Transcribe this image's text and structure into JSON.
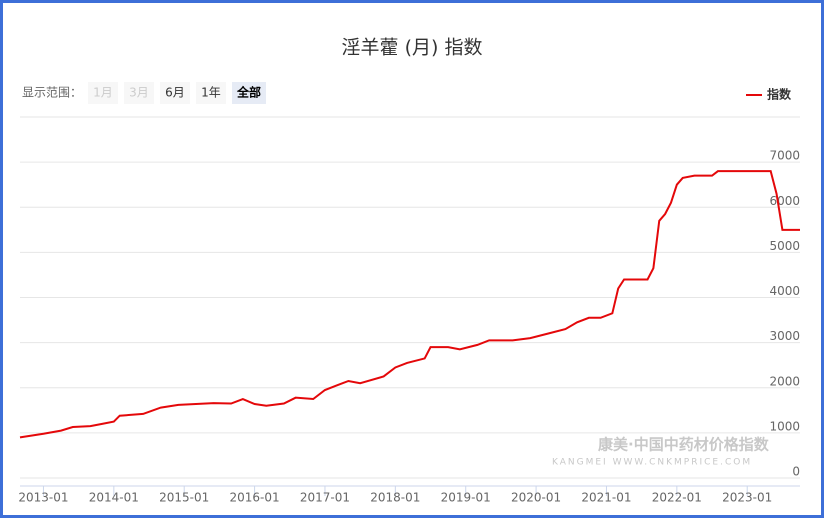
{
  "chart_data": {
    "type": "line",
    "title": "淫羊藿 (月) 指数",
    "range_selector": {
      "label": "显示范围：",
      "buttons": [
        "1月",
        "3月",
        "6月",
        "1年",
        "全部"
      ]
    },
    "watermark": [
      "康美·中国中药材价格指数",
      "KANGMEI WWW.CNKMPRICE.COM"
    ],
    "legend": "top-right",
    "grid": true,
    "x": [
      "2012-09",
      "2013-01",
      "2013-04",
      "2013-06",
      "2013-09",
      "2013-11",
      "2014-01",
      "2014-02",
      "2014-06",
      "2014-09",
      "2014-12",
      "2015-06",
      "2015-09",
      "2015-11",
      "2016-01",
      "2016-03",
      "2016-06",
      "2016-08",
      "2016-11",
      "2017-01",
      "2017-03",
      "2017-05",
      "2017-07",
      "2017-11",
      "2018-01",
      "2018-03",
      "2018-06",
      "2018-07",
      "2018-10",
      "2018-12",
      "2019-03",
      "2019-05",
      "2019-09",
      "2019-12",
      "2020-03",
      "2020-06",
      "2020-08",
      "2020-10",
      "2020-12",
      "2021-02",
      "2021-03",
      "2021-04",
      "2021-08",
      "2021-09",
      "2021-10",
      "2021-11",
      "2021-12",
      "2022-01",
      "2022-02",
      "2022-04",
      "2022-07",
      "2022-08",
      "2023-05",
      "2023-06",
      "2023-07",
      "2023-10"
    ],
    "series": [
      {
        "name": "指数",
        "color": "#e4080a",
        "values": [
          900,
          980,
          1050,
          1130,
          1150,
          1200,
          1250,
          1380,
          1420,
          1560,
          1620,
          1660,
          1650,
          1750,
          1640,
          1600,
          1650,
          1780,
          1750,
          1950,
          2050,
          2150,
          2100,
          2250,
          2450,
          2550,
          2650,
          2900,
          2900,
          2850,
          2950,
          3050,
          3050,
          3100,
          3200,
          3300,
          3450,
          3550,
          3550,
          3650,
          4200,
          4400,
          4400,
          4650,
          5700,
          5850,
          6100,
          6500,
          6650,
          6700,
          6700,
          6800,
          6800,
          6300,
          5500,
          5500
        ]
      }
    ],
    "xlim": [
      "2012-09",
      "2023-10"
    ],
    "xticks": [
      "2013-01",
      "2014-01",
      "2015-01",
      "2016-01",
      "2017-01",
      "2018-01",
      "2019-01",
      "2020-01",
      "2021-01",
      "2022-01",
      "2023-01"
    ],
    "ylim": [
      0,
      8000
    ],
    "yticks": [
      0,
      1000,
      2000,
      3000,
      4000,
      5000,
      6000,
      7000
    ]
  }
}
